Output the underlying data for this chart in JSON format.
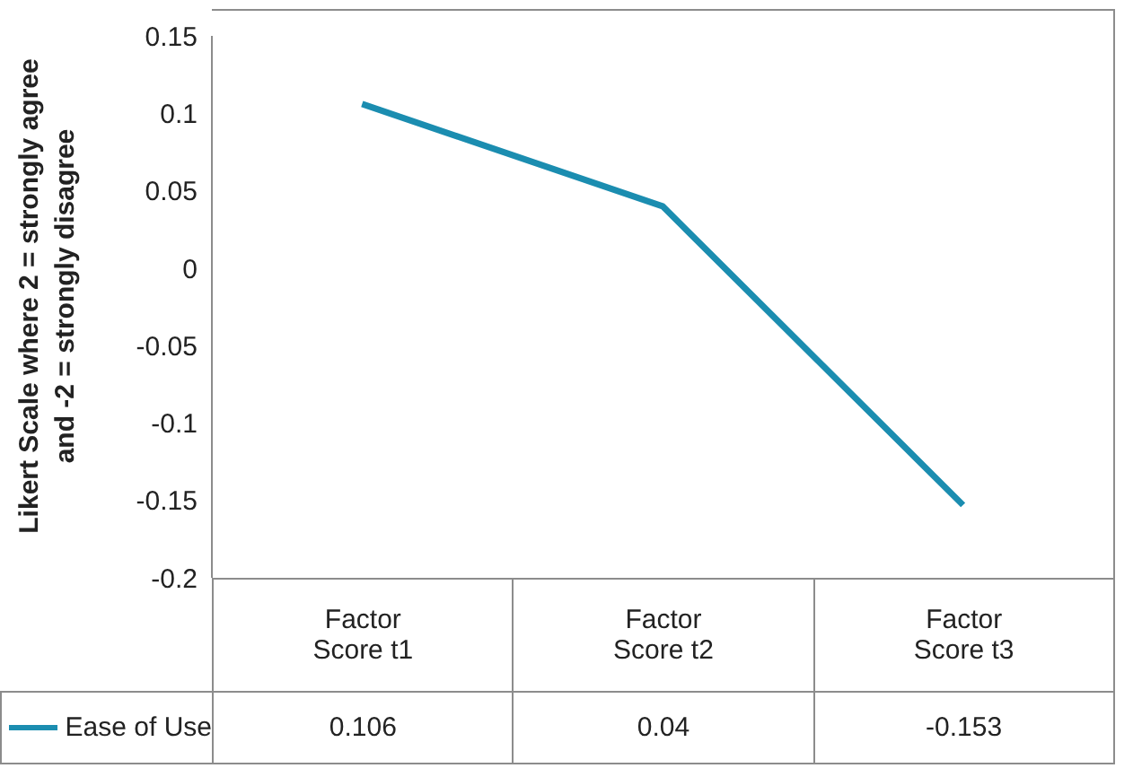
{
  "chart_data": {
    "type": "line",
    "ylabel": "Likert Scale where 2 = strongly agree and -2 = strongly disagree",
    "categories": [
      "Factor Score t1",
      "Factor Score t2",
      "Factor Score t3"
    ],
    "series": [
      {
        "name": "Ease of Use",
        "color": "#1b8db0",
        "values": [
          0.106,
          0.04,
          -0.153
        ]
      }
    ],
    "ylim": [
      -0.2,
      0.15
    ],
    "yticks": [
      -0.2,
      -0.15,
      -0.1,
      -0.05,
      0,
      0.05,
      0.1,
      0.15
    ],
    "data_labels": true,
    "legend": "bottom left",
    "marker": "none",
    "line_style": "solid"
  }
}
